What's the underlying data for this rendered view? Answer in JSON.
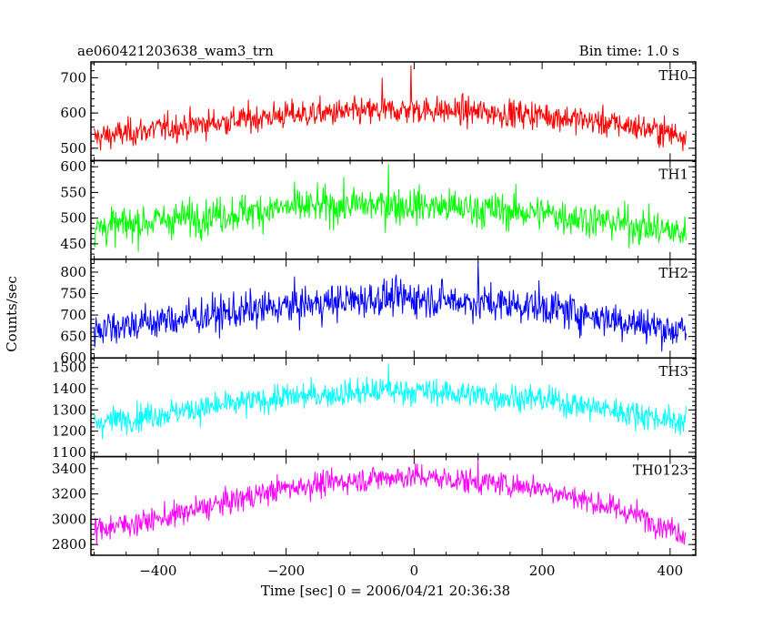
{
  "chart_data": {
    "type": "line",
    "title": "ae060421203638_wam3_trn",
    "subtitle": "Bin time: 1.0 s",
    "xlabel": "Time [sec] 0 = 2006/04/21 20:36:38",
    "ylabel": "Counts/sec",
    "xlim": [
      -505,
      440
    ],
    "x_ticks": [
      -400,
      -200,
      0,
      200,
      400
    ],
    "x_tick_labels": [
      "−400",
      "−200",
      "0",
      "200",
      "400"
    ],
    "x_range_data": [
      -500,
      425
    ],
    "bin": 1.0,
    "grid": false,
    "panels": [
      {
        "name": "TH0",
        "color": "#ff0000",
        "ylim": [
          465,
          745
        ],
        "y_ticks": [
          500,
          600,
          700
        ],
        "y_tick_labels": [
          "500",
          "600",
          "700"
        ],
        "profile": {
          "x": [
            -500,
            -400,
            -200,
            -50,
            0,
            200,
            350,
            425
          ],
          "y": [
            530,
            555,
            595,
            605,
            610,
            595,
            560,
            535
          ]
        },
        "noise": 28,
        "spikes": [
          {
            "x": -5,
            "y": 735
          },
          {
            "x": -50,
            "y": 700
          }
        ]
      },
      {
        "name": "TH1",
        "color": "#00ff00",
        "ylim": [
          420,
          612
        ],
        "y_ticks": [
          450,
          500,
          550,
          600
        ],
        "y_tick_labels": [
          "450",
          "500",
          "550",
          "600"
        ],
        "profile": {
          "x": [
            -500,
            -400,
            -200,
            -100,
            0,
            200,
            350,
            425
          ],
          "y": [
            480,
            495,
            520,
            525,
            525,
            510,
            485,
            470
          ]
        },
        "noise": 25,
        "spikes": [
          {
            "x": -40,
            "y": 605
          }
        ]
      },
      {
        "name": "TH2",
        "color": "#0000ff",
        "ylim": [
          600,
          830
        ],
        "y_ticks": [
          600,
          650,
          700,
          750,
          800
        ],
        "y_tick_labels": [
          "600",
          "650",
          "700",
          "750",
          "800"
        ],
        "profile": {
          "x": [
            -500,
            -400,
            -200,
            -50,
            0,
            200,
            350,
            425
          ],
          "y": [
            670,
            685,
            720,
            740,
            740,
            720,
            680,
            660
          ]
        },
        "noise": 30,
        "spikes": [
          {
            "x": 100,
            "y": 825
          }
        ]
      },
      {
        "name": "TH3",
        "color": "#00ffff",
        "ylim": [
          1080,
          1545
        ],
        "y_ticks": [
          1100,
          1200,
          1300,
          1400,
          1500
        ],
        "y_tick_labels": [
          "1100",
          "1200",
          "1300",
          "1400",
          "1500"
        ],
        "profile": {
          "x": [
            -500,
            -400,
            -200,
            -50,
            0,
            200,
            350,
            425
          ],
          "y": [
            1240,
            1280,
            1360,
            1390,
            1390,
            1350,
            1280,
            1240
          ]
        },
        "noise": 45,
        "spikes": [
          {
            "x": -40,
            "y": 1520
          }
        ]
      },
      {
        "name": "TH0123",
        "color": "#ff00ff",
        "ylim": [
          2715,
          3495
        ],
        "y_ticks": [
          2800,
          3000,
          3200,
          3400
        ],
        "y_tick_labels": [
          "2800",
          "3000",
          "3200",
          "3400"
        ],
        "profile": {
          "x": [
            -500,
            -400,
            -200,
            -50,
            0,
            200,
            350,
            425
          ],
          "y": [
            2920,
            3000,
            3250,
            3330,
            3340,
            3250,
            3030,
            2880
          ]
        },
        "noise": 70,
        "spikes": [
          {
            "x": 100,
            "y": 3470
          }
        ]
      }
    ]
  }
}
